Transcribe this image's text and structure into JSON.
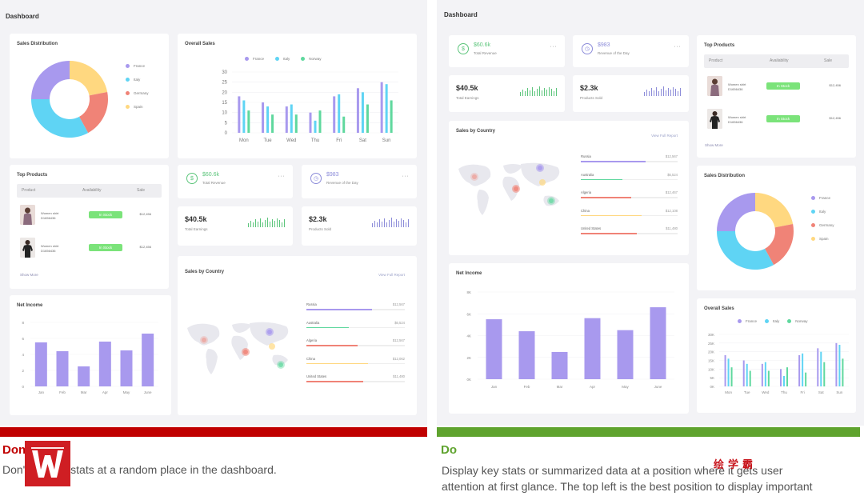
{
  "colors": {
    "france": "#a899ee",
    "italy": "#5fd4f4",
    "germany": "#f08377",
    "spain": "#ffd880",
    "norway": "#5fd89e",
    "green_accent": "#5cc57b",
    "purple_accent": "#8c8cd9",
    "dont_red": "#c00000",
    "do_green": "#5fa32e"
  },
  "left": {
    "dashboard_title": "Dashboard",
    "sales_distribution": {
      "title": "Sales Distribution",
      "legend": [
        "France",
        "Italy",
        "Germany",
        "Spain"
      ]
    },
    "overall_sales": {
      "title": "Overall Sales",
      "legend": [
        "France",
        "Italy",
        "Norway"
      ],
      "y_ticks": [
        "30",
        "25",
        "20",
        "15",
        "10",
        "5",
        "0"
      ],
      "days": [
        "Mon",
        "Tue",
        "Wed",
        "Thu",
        "Fri",
        "Sat",
        "Sun"
      ]
    },
    "top_products": {
      "title": "Top Products",
      "headers": [
        "Product",
        "Availability",
        "Sale"
      ],
      "rows": [
        {
          "name": "Women shirt",
          "code": "D1656436",
          "availability": "In Stock",
          "sale": "$12,456"
        },
        {
          "name": "Women shirt",
          "code": "D1656436",
          "availability": "In Stock",
          "sale": "$12,456"
        }
      ],
      "show_more": "Show More"
    },
    "net_income": {
      "title": "Net Income",
      "y_ticks": [
        "8",
        "6",
        "4",
        "2",
        "0"
      ],
      "months": [
        "Jan",
        "Feb",
        "Mar",
        "Apr",
        "May",
        "June"
      ]
    },
    "stat_revenue": {
      "value": "$60.6k",
      "label": "Total Revenue",
      "more": "···"
    },
    "stat_revenue_day": {
      "value": "$983",
      "label": "Revenue of the Day",
      "more": "···"
    },
    "stat_earnings": {
      "value": "$40.5k",
      "label": "Total Earnings"
    },
    "stat_products": {
      "value": "$2.3k",
      "label": "Products Sold"
    },
    "sales_by_country": {
      "title": "Sales by Country",
      "link": "View Full Report",
      "countries": [
        {
          "name": "Russia",
          "value": "$12,567"
        },
        {
          "name": "Australia",
          "value": "$6,524"
        },
        {
          "name": "Algeria",
          "value": "$12,567"
        },
        {
          "name": "China",
          "value": "$12,062"
        },
        {
          "name": "United States",
          "value": "$11,480"
        }
      ]
    }
  },
  "right": {
    "dashboard_title": "Dashboard",
    "stat_revenue": {
      "value": "$60.6k",
      "label": "Total Revenue",
      "more": "···"
    },
    "stat_revenue_day": {
      "value": "$983",
      "label": "Revenue of the Day",
      "more": "···"
    },
    "stat_earnings": {
      "value": "$40.5k",
      "label": "Total Earnings"
    },
    "stat_products": {
      "value": "$2.3k",
      "label": "Products Sold"
    },
    "top_products": {
      "title": "Top Products",
      "headers": [
        "Product",
        "Availability",
        "Sale"
      ],
      "rows": [
        {
          "name": "Women shirt",
          "code": "D1656436",
          "availability": "In Stock",
          "sale": "$12,456"
        },
        {
          "name": "Women shirt",
          "code": "D1656436",
          "availability": "In Stock",
          "sale": "$12,456"
        }
      ],
      "show_more": "Show More"
    },
    "sales_by_country": {
      "title": "Sales by Country",
      "link": "View Full Report",
      "countries": [
        {
          "name": "Russia",
          "value": "$12,567"
        },
        {
          "name": "Australia",
          "value": "$6,524"
        },
        {
          "name": "Algeria",
          "value": "$12,467"
        },
        {
          "name": "China",
          "value": "$12,108"
        },
        {
          "name": "United States",
          "value": "$11,480"
        }
      ]
    },
    "sales_distribution": {
      "title": "Sales Distribution",
      "legend": [
        "France",
        "Italy",
        "Germany",
        "Spain"
      ]
    },
    "net_income": {
      "title": "Net Income",
      "y_ticks": [
        "8K",
        "6K",
        "4K",
        "2K",
        "0K"
      ],
      "months": [
        "Jan",
        "Feb",
        "Mar",
        "Apr",
        "May",
        "June"
      ]
    },
    "overall_sales": {
      "title": "Overall Sales",
      "legend": [
        "France",
        "Italy",
        "Norway"
      ],
      "y_ticks": [
        "30K",
        "25K",
        "20K",
        "15K",
        "10K",
        "5K",
        "0K"
      ],
      "days": [
        "Mon",
        "Tue",
        "Wed",
        "Thu",
        "Fri",
        "Sat",
        "Sun"
      ]
    }
  },
  "dont": {
    "label": "Don't",
    "caption": "Don't put key stats at a random place in the dashboard.",
    "logo_text": "W"
  },
  "do": {
    "label": "Do",
    "caption_line1": "Display key stats or summarized data at a position where it gets user",
    "caption_line2": "attention at first glance. The top left is the best position to display important"
  },
  "watermark": "绘学霸",
  "chart_data": [
    {
      "type": "pie",
      "title": "Sales Distribution",
      "categories": [
        "France",
        "Italy",
        "Germany",
        "Spain"
      ],
      "values": [
        25,
        33,
        20,
        22
      ]
    },
    {
      "type": "bar",
      "title": "Overall Sales",
      "categories": [
        "Mon",
        "Tue",
        "Wed",
        "Thu",
        "Fri",
        "Sat",
        "Sun"
      ],
      "series": [
        {
          "name": "France",
          "values": [
            18,
            15,
            13,
            10,
            18,
            22,
            25
          ]
        },
        {
          "name": "Italy",
          "values": [
            16,
            13,
            14,
            6,
            19,
            20,
            24
          ]
        },
        {
          "name": "Norway",
          "values": [
            11,
            9,
            9,
            11,
            8,
            14,
            16
          ]
        }
      ],
      "ylim": [
        0,
        30
      ]
    },
    {
      "type": "bar",
      "title": "Net Income",
      "categories": [
        "Jan",
        "Feb",
        "Mar",
        "Apr",
        "May",
        "June"
      ],
      "values": [
        5.5,
        4.4,
        2.5,
        5.6,
        4.5,
        6.6
      ],
      "ylim": [
        0,
        8
      ]
    },
    {
      "type": "bar",
      "title": "Sales by Country",
      "categories": [
        "Russia",
        "Australia",
        "Algeria",
        "China",
        "United States"
      ],
      "values": [
        12567,
        6524,
        12567,
        12062,
        11480
      ]
    }
  ]
}
